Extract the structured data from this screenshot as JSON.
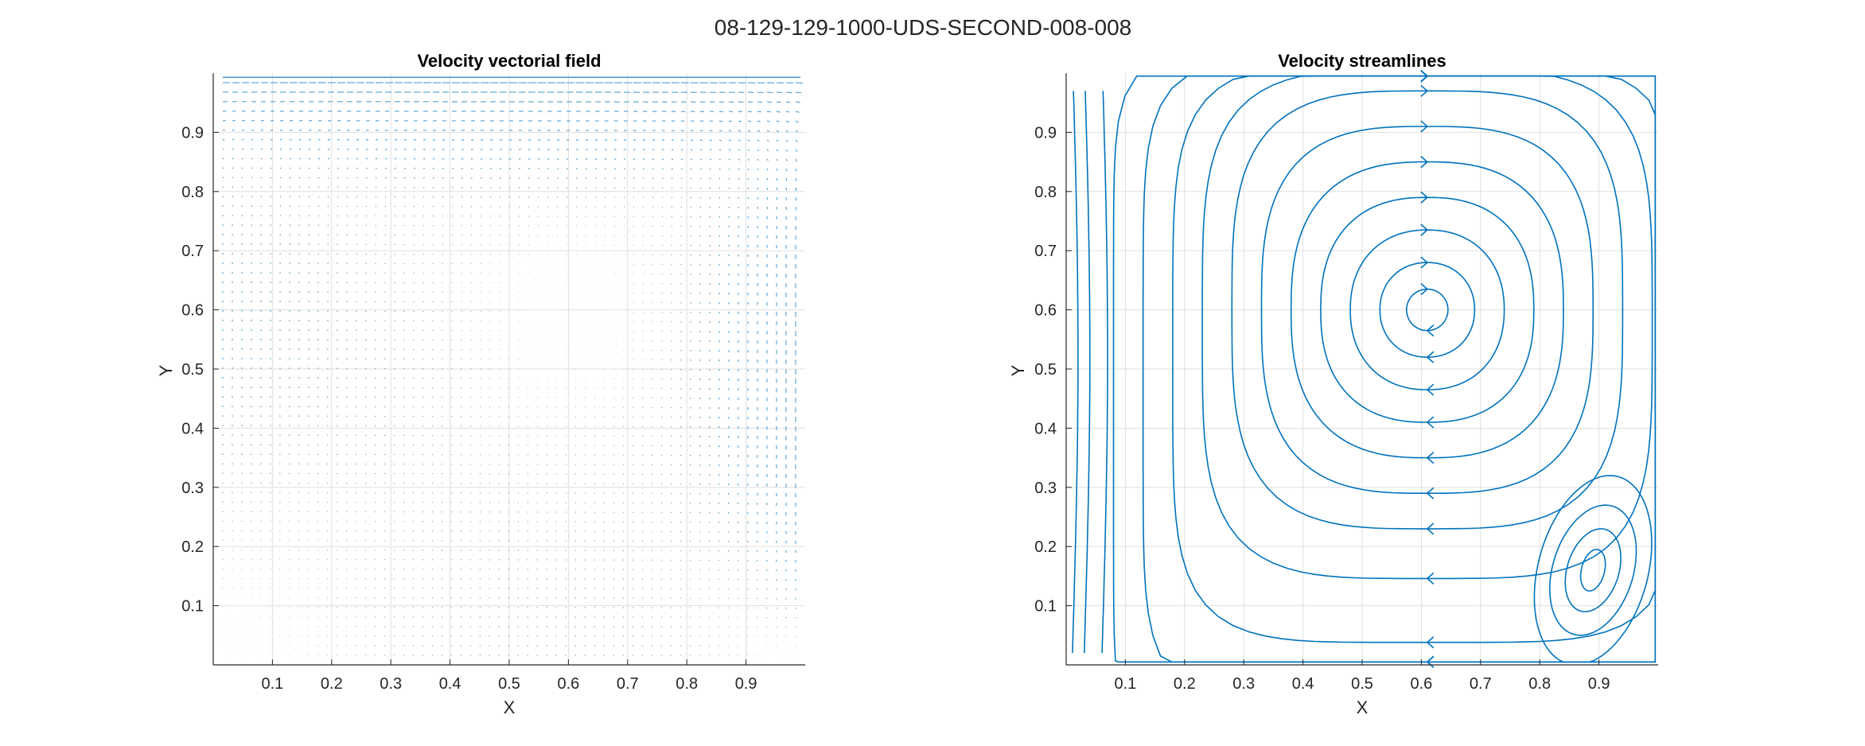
{
  "figure": {
    "suptitle": "08-129-129-1000-UDS-SECOND-008-008"
  },
  "colors": {
    "series": "#0072bd",
    "grid": "#dfdfdf",
    "axis": "#262626",
    "background": "#ffffff"
  },
  "chart_data": [
    {
      "type": "quiver",
      "title": "Velocity vectorial field",
      "xlabel": "X",
      "ylabel": "Y",
      "xlim": [
        0,
        1
      ],
      "ylim": [
        0,
        1
      ],
      "grid": true,
      "xticks": [
        "0.1",
        "0.2",
        "0.3",
        "0.4",
        "0.5",
        "0.6",
        "0.7",
        "0.8",
        "0.9"
      ],
      "yticks": [
        "0.1",
        "0.2",
        "0.3",
        "0.4",
        "0.5",
        "0.6",
        "0.7",
        "0.8",
        "0.9"
      ],
      "grid_points": [
        129,
        129
      ],
      "field": "lid-driven cavity flow, lid moving +x at y = 1; strongest vectors along the top lid and down the right wall",
      "vortex_center": [
        0.61,
        0.6
      ],
      "series": [
        {
          "values": "velocity vectors (u, v) on a 129 x 129 grid"
        }
      ]
    },
    {
      "type": "streamline",
      "title": "Velocity streamlines",
      "xlabel": "X",
      "ylabel": "Y",
      "xlim": [
        0,
        1
      ],
      "ylim": [
        0,
        1
      ],
      "grid": true,
      "xticks": [
        "0.1",
        "0.2",
        "0.3",
        "0.4",
        "0.5",
        "0.6",
        "0.7",
        "0.8",
        "0.9"
      ],
      "yticks": [
        "0.1",
        "0.2",
        "0.3",
        "0.4",
        "0.5",
        "0.6",
        "0.7",
        "0.8",
        "0.9"
      ],
      "primary_vortex": {
        "center": [
          0.61,
          0.6
        ],
        "rotation": "clockwise"
      },
      "secondary_vortex": {
        "center": [
          0.89,
          0.16
        ],
        "rotation": "counter-clockwise"
      },
      "series": [
        {
          "values": "closed streamlines around primary vortex at (0.61, 0.60)"
        },
        {
          "values": "secondary corner vortex at (0.89, 0.16)"
        }
      ]
    }
  ]
}
